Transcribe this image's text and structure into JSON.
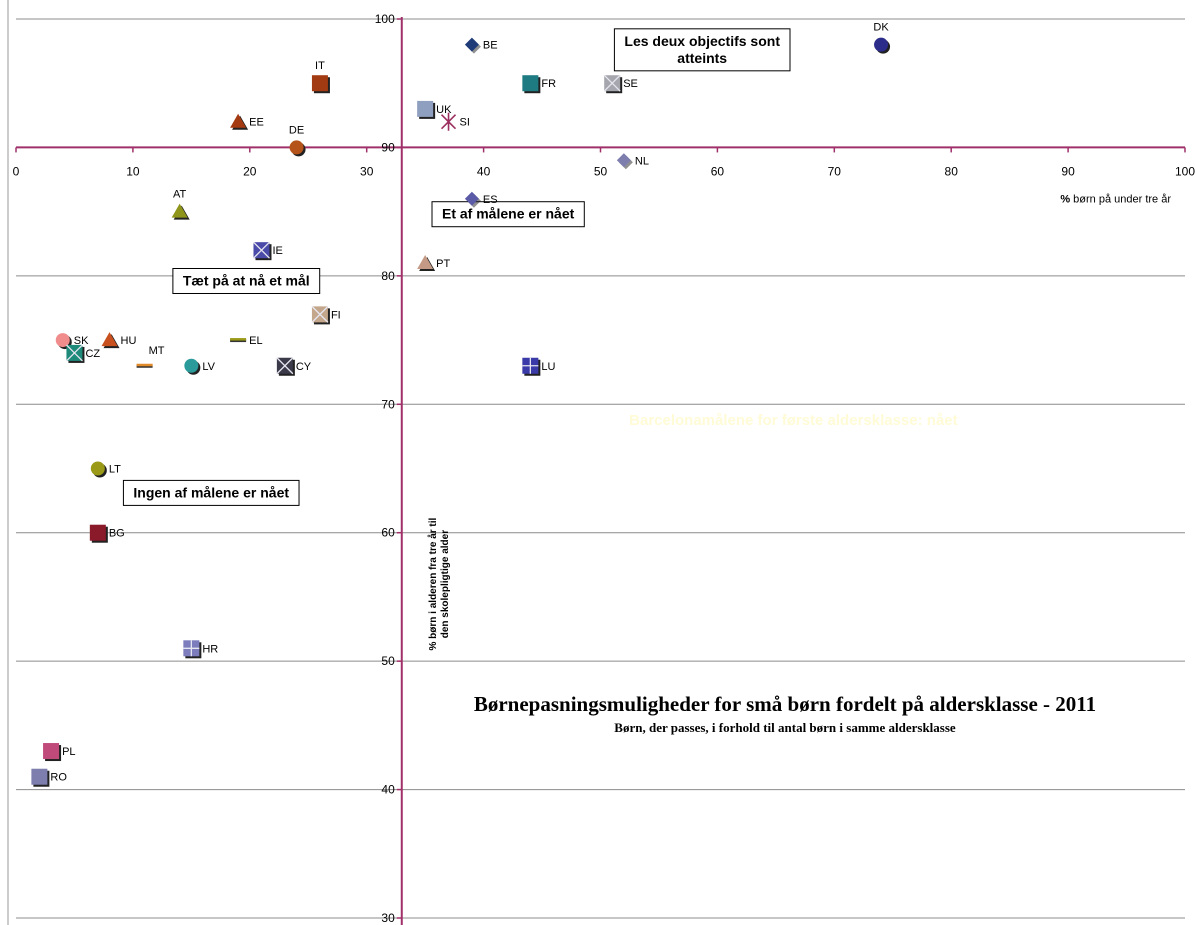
{
  "chart_data": {
    "type": "scatter",
    "title": "Børnepasningsmuligheder for små børn fordelt på aldersklasse - 2011",
    "subtitle": "Børn, der passes, i forhold til antal børn i samme aldersklasse",
    "xlabel_bold": "%",
    "xlabel_rest": " børn på under tre år",
    "ylabel_lines": [
      "% børn i alderen fra tre år til",
      "den skolepligtige alder"
    ],
    "xlim": [
      0,
      100
    ],
    "ylim": [
      30,
      100
    ],
    "x_ticks": [
      0,
      10,
      20,
      30,
      40,
      50,
      60,
      70,
      80,
      90,
      100
    ],
    "y_ticks": [
      30,
      40,
      50,
      60,
      70,
      80,
      90,
      100
    ],
    "grid": "horizontal",
    "reference_lines": {
      "x": 33,
      "y": 90,
      "color": "#a0306a"
    },
    "quadrant_labels": [
      {
        "lines": [
          "Les deux objectifs sont",
          "atteints"
        ],
        "x": 58.7,
        "y": 97.6
      },
      {
        "lines": [
          "Et af målene er nået"
        ],
        "x": 42.1,
        "y": 84.8
      },
      {
        "lines": [
          "Tæt på at nå et mål"
        ],
        "x": 19.7,
        "y": 79.6
      },
      {
        "lines": [
          "Ingen af målene er nået"
        ],
        "x": 16.7,
        "y": 63.1
      }
    ],
    "faint_annotation": {
      "text": "Barcelonamålene for første aldersklasse: nået",
      "x": 66.5,
      "y": 68.4
    },
    "points": [
      {
        "label": "BE",
        "x": 39,
        "y": 98,
        "marker": "diamond",
        "color": "#1f3b78"
      },
      {
        "label": "DK",
        "x": 74,
        "y": 98,
        "marker": "circle",
        "color": "#2c2c8a"
      },
      {
        "label": "FR",
        "x": 44,
        "y": 95,
        "marker": "square",
        "color": "#1e7b82"
      },
      {
        "label": "SE",
        "x": 51,
        "y": 95,
        "marker": "square-x",
        "color": "#a6a6ae"
      },
      {
        "label": "IT",
        "x": 26,
        "y": 95,
        "marker": "square",
        "color": "#a23a12"
      },
      {
        "label": "UK",
        "x": 35,
        "y": 93,
        "marker": "square",
        "color": "#8f9fbf"
      },
      {
        "label": "SI",
        "x": 37,
        "y": 92,
        "marker": "star",
        "color": "#9b3060"
      },
      {
        "label": "EE",
        "x": 19,
        "y": 92,
        "marker": "triangle",
        "color": "#a33a12"
      },
      {
        "label": "DE",
        "x": 24,
        "y": 90,
        "marker": "circle",
        "color": "#b5541a"
      },
      {
        "label": "NL",
        "x": 52,
        "y": 89,
        "marker": "diamond",
        "color": "#7d7dae"
      },
      {
        "label": "ES",
        "x": 39,
        "y": 86,
        "marker": "diamond",
        "color": "#5a5aa6"
      },
      {
        "label": "AT",
        "x": 14,
        "y": 85,
        "marker": "triangle",
        "color": "#8f951a"
      },
      {
        "label": "IE",
        "x": 21,
        "y": 82,
        "marker": "square-x",
        "color": "#4a4aa8"
      },
      {
        "label": "PT",
        "x": 35,
        "y": 81,
        "marker": "triangle",
        "color": "#c49a86"
      },
      {
        "label": "FI",
        "x": 26,
        "y": 77,
        "marker": "square-x",
        "color": "#c4a68a"
      },
      {
        "label": "SK",
        "x": 4,
        "y": 75,
        "marker": "circle",
        "color": "#f08c8c"
      },
      {
        "label": "HU",
        "x": 8,
        "y": 75,
        "marker": "triangle",
        "color": "#c8501e"
      },
      {
        "label": "EL",
        "x": 19,
        "y": 75,
        "marker": "dash",
        "color": "#9a9a18"
      },
      {
        "label": "CZ",
        "x": 5,
        "y": 74,
        "marker": "square-x",
        "color": "#1e8a7a"
      },
      {
        "label": "MT",
        "x": 11,
        "y": 73,
        "marker": "dash",
        "color": "#e08a2a"
      },
      {
        "label": "LV",
        "x": 15,
        "y": 73,
        "marker": "circle",
        "color": "#2a9a9a"
      },
      {
        "label": "CY",
        "x": 23,
        "y": 73,
        "marker": "square-x",
        "color": "#3a3a4a"
      },
      {
        "label": "LU",
        "x": 44,
        "y": 73,
        "marker": "square-plus",
        "color": "#3a3aa8"
      },
      {
        "label": "LT",
        "x": 7,
        "y": 65,
        "marker": "circle",
        "color": "#9a9a18"
      },
      {
        "label": "BG",
        "x": 7,
        "y": 60,
        "marker": "square",
        "color": "#8a1a2a"
      },
      {
        "label": "HR",
        "x": 15,
        "y": 51,
        "marker": "square-plus",
        "color": "#7d7dbe"
      },
      {
        "label": "PL",
        "x": 3,
        "y": 43,
        "marker": "square",
        "color": "#c04a7a"
      },
      {
        "label": "RO",
        "x": 2,
        "y": 41,
        "marker": "square",
        "color": "#7d7dae"
      }
    ]
  }
}
